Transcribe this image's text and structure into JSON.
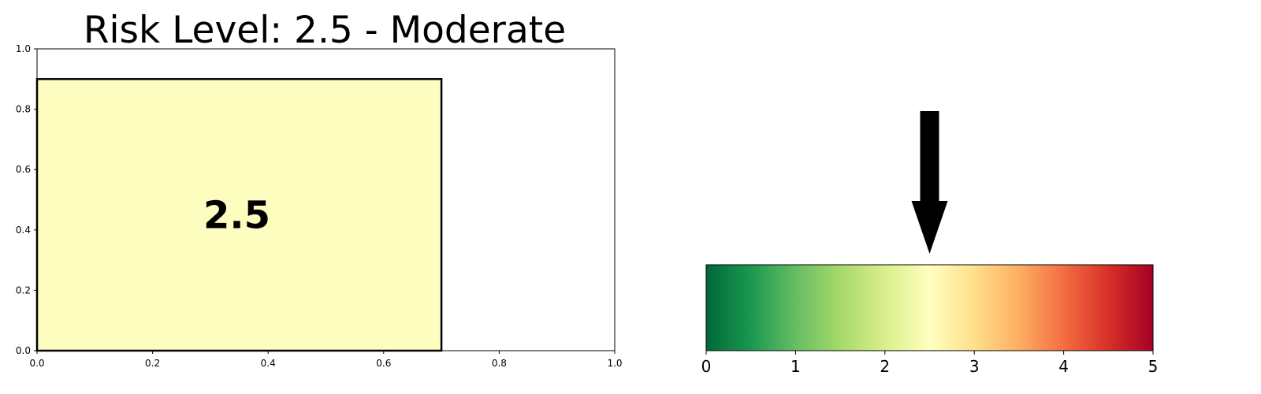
{
  "chart_data": [
    {
      "type": "bar",
      "title": "Risk Level: 2.5 - Moderate",
      "xlabel": "",
      "ylabel": "",
      "xlim": [
        0,
        1
      ],
      "ylim": [
        0,
        1
      ],
      "x_ticks": [
        "0.0",
        "0.2",
        "0.4",
        "0.6",
        "0.8",
        "1.0"
      ],
      "y_ticks": [
        "0.0",
        "0.2",
        "0.4",
        "0.6",
        "0.8",
        "1.0"
      ],
      "bar": {
        "x0": 0,
        "x1": 0.7,
        "y0": 0,
        "y1": 0.9,
        "fill": "#fefdc0",
        "edge": "#000000"
      },
      "value_label": "2.5",
      "grid": false
    },
    {
      "type": "colorbar-gauge",
      "range": [
        0,
        5
      ],
      "value": 2.5,
      "ticks": [
        "0",
        "1",
        "2",
        "3",
        "4",
        "5"
      ],
      "colormap": [
        "#006837",
        "#1a9850",
        "#66bd63",
        "#a6d96a",
        "#d9ef8b",
        "#ffffbf",
        "#fee08b",
        "#fdae61",
        "#f46d43",
        "#d73027",
        "#a50026"
      ],
      "pointer": "down-arrow"
    }
  ]
}
